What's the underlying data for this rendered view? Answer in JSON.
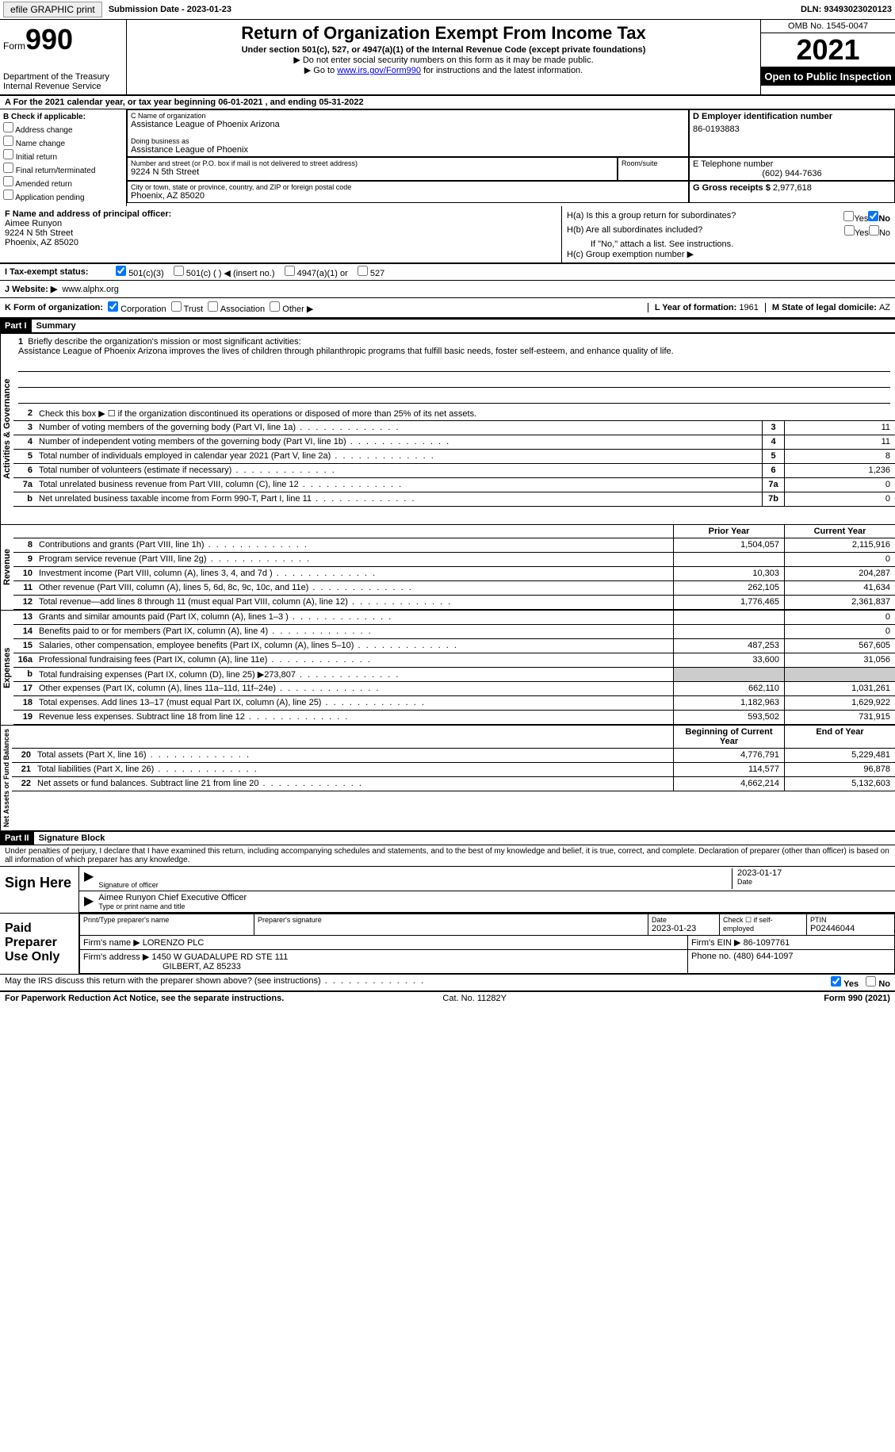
{
  "topbar": {
    "efile": "efile GRAPHIC print",
    "submission_label": "Submission Date - ",
    "submission_date": "2023-01-23",
    "dln_label": "DLN: ",
    "dln": "93493023020123"
  },
  "header": {
    "form_word": "Form",
    "form_num": "990",
    "dept1": "Department of the Treasury",
    "dept2": "Internal Revenue Service",
    "title": "Return of Organization Exempt From Income Tax",
    "sub": "Under section 501(c), 527, or 4947(a)(1) of the Internal Revenue Code (except private foundations)",
    "note1": "▶ Do not enter social security numbers on this form as it may be made public.",
    "note2_a": "▶ Go to ",
    "note2_link": "www.irs.gov/Form990",
    "note2_b": " for instructions and the latest information.",
    "omb": "OMB No. 1545-0047",
    "year": "2021",
    "open": "Open to Public Inspection"
  },
  "A": {
    "text": "A For the 2021 calendar year, or tax year beginning 06-01-2021   , and ending 05-31-2022"
  },
  "B": {
    "label": "B Check if applicable:",
    "opts": [
      "Address change",
      "Name change",
      "Initial return",
      "Final return/terminated",
      "Amended return",
      "Application pending"
    ]
  },
  "C": {
    "name_label": "C Name of organization",
    "name": "Assistance League of Phoenix Arizona",
    "dba_label": "Doing business as",
    "dba": "Assistance League of Phoenix",
    "street_label": "Number and street (or P.O. box if mail is not delivered to street address)",
    "room_label": "Room/suite",
    "street": "9224 N 5th Street",
    "city_label": "City or town, state or province, country, and ZIP or foreign postal code",
    "city": "Phoenix, AZ  85020"
  },
  "D": {
    "label": "D Employer identification number",
    "val": "86-0193883"
  },
  "E": {
    "label": "E Telephone number",
    "val": "(602) 944-7636"
  },
  "G": {
    "label": "G Gross receipts $ ",
    "val": "2,977,618"
  },
  "F": {
    "label": "F  Name and address of principal officer:",
    "name": "Aimee Runyon",
    "street": "9224 N 5th Street",
    "city": "Phoenix, AZ  85020"
  },
  "H": {
    "a": "H(a)  Is this a group return for subordinates?",
    "b": "H(b)  Are all subordinates included?",
    "b_note": "If \"No,\" attach a list. See instructions.",
    "c": "H(c)  Group exemption number ▶",
    "yes": "Yes",
    "no": "No"
  },
  "I": {
    "label": "I   Tax-exempt status:",
    "o1": "501(c)(3)",
    "o2": "501(c) (  ) ◀ (insert no.)",
    "o3": "4947(a)(1) or",
    "o4": "527"
  },
  "J": {
    "label": "J   Website: ▶",
    "val": "www.alphx.org"
  },
  "K": {
    "label": "K Form of organization:",
    "o1": "Corporation",
    "o2": "Trust",
    "o3": "Association",
    "o4": "Other ▶"
  },
  "L": {
    "label": "L Year of formation: ",
    "val": "1961"
  },
  "M": {
    "label": "M State of legal domicile: ",
    "val": "AZ"
  },
  "part1": {
    "hdr": "Part I",
    "title": "Summary"
  },
  "summary": {
    "q1": "Briefly describe the organization's mission or most significant activities:",
    "mission": "Assistance League of Phoenix Arizona improves the lives of children through philanthropic programs that fulfill basic needs, foster self-esteem, and enhance quality of life.",
    "q2": "Check this box ▶ ☐  if the organization discontinued its operations or disposed of more than 25% of its net assets.",
    "rows_top": [
      {
        "n": "3",
        "d": "Number of voting members of the governing body (Part VI, line 1a)",
        "b": "3",
        "v": "11"
      },
      {
        "n": "4",
        "d": "Number of independent voting members of the governing body (Part VI, line 1b)",
        "b": "4",
        "v": "11"
      },
      {
        "n": "5",
        "d": "Total number of individuals employed in calendar year 2021 (Part V, line 2a)",
        "b": "5",
        "v": "8"
      },
      {
        "n": "6",
        "d": "Total number of volunteers (estimate if necessary)",
        "b": "6",
        "v": "1,236"
      },
      {
        "n": "7a",
        "d": "Total unrelated business revenue from Part VIII, column (C), line 12",
        "b": "7a",
        "v": "0"
      },
      {
        "n": "b",
        "d": "Net unrelated business taxable income from Form 990-T, Part I, line 11",
        "b": "7b",
        "v": "0"
      }
    ],
    "col_prior": "Prior Year",
    "col_curr": "Current Year",
    "revenue": [
      {
        "n": "8",
        "d": "Contributions and grants (Part VIII, line 1h)",
        "p": "1,504,057",
        "c": "2,115,916"
      },
      {
        "n": "9",
        "d": "Program service revenue (Part VIII, line 2g)",
        "p": "",
        "c": "0"
      },
      {
        "n": "10",
        "d": "Investment income (Part VIII, column (A), lines 3, 4, and 7d )",
        "p": "10,303",
        "c": "204,287"
      },
      {
        "n": "11",
        "d": "Other revenue (Part VIII, column (A), lines 5, 6d, 8c, 9c, 10c, and 11e)",
        "p": "262,105",
        "c": "41,634"
      },
      {
        "n": "12",
        "d": "Total revenue—add lines 8 through 11 (must equal Part VIII, column (A), line 12)",
        "p": "1,776,465",
        "c": "2,361,837"
      }
    ],
    "expenses": [
      {
        "n": "13",
        "d": "Grants and similar amounts paid (Part IX, column (A), lines 1–3 )",
        "p": "",
        "c": "0"
      },
      {
        "n": "14",
        "d": "Benefits paid to or for members (Part IX, column (A), line 4)",
        "p": "",
        "c": "0"
      },
      {
        "n": "15",
        "d": "Salaries, other compensation, employee benefits (Part IX, column (A), lines 5–10)",
        "p": "487,253",
        "c": "567,605"
      },
      {
        "n": "16a",
        "d": "Professional fundraising fees (Part IX, column (A), line 11e)",
        "p": "33,600",
        "c": "31,056"
      },
      {
        "n": "b",
        "d": "Total fundraising expenses (Part IX, column (D), line 25) ▶273,807",
        "p": "grey",
        "c": "grey"
      },
      {
        "n": "17",
        "d": "Other expenses (Part IX, column (A), lines 11a–11d, 11f–24e)",
        "p": "662,110",
        "c": "1,031,261"
      },
      {
        "n": "18",
        "d": "Total expenses. Add lines 13–17 (must equal Part IX, column (A), line 25)",
        "p": "1,182,963",
        "c": "1,629,922"
      },
      {
        "n": "19",
        "d": "Revenue less expenses. Subtract line 18 from line 12",
        "p": "593,502",
        "c": "731,915"
      }
    ],
    "col_begin": "Beginning of Current Year",
    "col_end": "End of Year",
    "netassets": [
      {
        "n": "20",
        "d": "Total assets (Part X, line 16)",
        "p": "4,776,791",
        "c": "5,229,481"
      },
      {
        "n": "21",
        "d": "Total liabilities (Part X, line 26)",
        "p": "114,577",
        "c": "96,878"
      },
      {
        "n": "22",
        "d": "Net assets or fund balances. Subtract line 21 from line 20",
        "p": "4,662,214",
        "c": "5,132,603"
      }
    ],
    "vlabels": {
      "gov": "Activities & Governance",
      "rev": "Revenue",
      "exp": "Expenses",
      "net": "Net Assets or Fund Balances"
    }
  },
  "part2": {
    "hdr": "Part II",
    "title": "Signature Block",
    "decl": "Under penalties of perjury, I declare that I have examined this return, including accompanying schedules and statements, and to the best of my knowledge and belief, it is true, correct, and complete. Declaration of preparer (other than officer) is based on all information of which preparer has any knowledge."
  },
  "sign": {
    "label": "Sign Here",
    "sig_of": "Signature of officer",
    "date": "Date",
    "date_val": "2023-01-17",
    "name": "Aimee Runyon  Chief Executive Officer",
    "type_name": "Type or print name and title"
  },
  "preparer": {
    "label": "Paid Preparer Use Only",
    "h1": "Print/Type preparer's name",
    "h2": "Preparer's signature",
    "h3_a": "Date",
    "h3_b": "2023-01-23",
    "h4": "Check ☐ if self-employed",
    "h5_a": "PTIN",
    "h5_b": "P02446044",
    "firm_name_lbl": "Firm's name    ▶ ",
    "firm_name": "LORENZO PLC",
    "firm_ein_lbl": "Firm's EIN ▶ ",
    "firm_ein": "86-1097761",
    "firm_addr_lbl": "Firm's address ▶ ",
    "firm_addr1": "1450 W GUADALUPE RD STE 111",
    "firm_addr2": "GILBERT, AZ  85233",
    "phone_lbl": "Phone no. ",
    "phone": "(480) 644-1097"
  },
  "discuss": {
    "q": "May the IRS discuss this return with the preparer shown above? (see instructions)",
    "yes": "Yes",
    "no": "No"
  },
  "footer": {
    "left": "For Paperwork Reduction Act Notice, see the separate instructions.",
    "mid": "Cat. No. 11282Y",
    "right": "Form 990 (2021)"
  }
}
